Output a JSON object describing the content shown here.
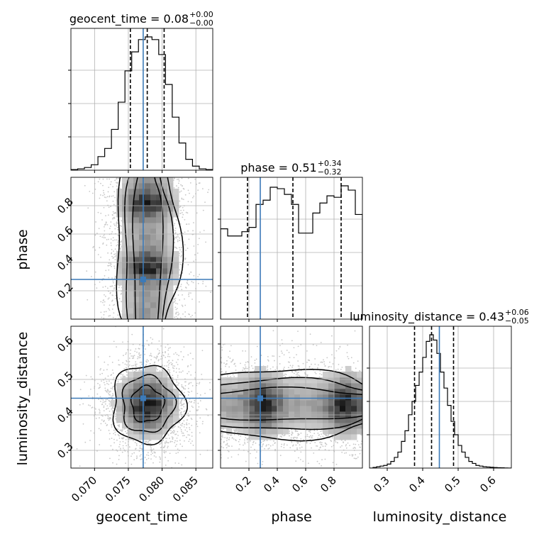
{
  "chart_data": {
    "type": "corner",
    "parameters": [
      "geocent_time",
      "phase",
      "luminosity_distance"
    ],
    "axis_labels": [
      "geocent_time",
      "phase",
      "luminosity_distance"
    ],
    "ranges": [
      [
        0.0665,
        0.0875
      ],
      [
        0.0,
        1.0
      ],
      [
        0.25,
        0.65
      ]
    ],
    "ticks": [
      {
        "values": [
          0.07,
          0.075,
          0.08,
          0.085
        ],
        "labels": [
          "0.070",
          "0.075",
          "0.080",
          "0.085"
        ]
      },
      {
        "values": [
          0.2,
          0.4,
          0.6,
          0.8
        ],
        "labels": [
          "0.2",
          "0.4",
          "0.6",
          "0.8"
        ]
      },
      {
        "values": [
          0.3,
          0.4,
          0.5,
          0.6
        ],
        "labels": [
          "0.3",
          "0.4",
          "0.5",
          "0.6"
        ]
      }
    ],
    "grid": true,
    "truths": [
      0.0772,
      0.28,
      0.447
    ],
    "truth_color": "#3c7ab8",
    "titles": [
      {
        "name": "geocent_time",
        "median": "0.08",
        "plus": "+0.00",
        "minus": "−0.00"
      },
      {
        "name": "phase",
        "median": "0.51",
        "plus": "+0.34",
        "minus": "−0.32"
      },
      {
        "name": "luminosity_distance",
        "median": "0.43",
        "plus": "+0.06",
        "minus": "−0.05"
      }
    ],
    "quantiles": [
      [
        0.0753,
        0.0778,
        0.0803
      ],
      [
        0.19,
        0.51,
        0.85
      ],
      [
        0.377,
        0.425,
        0.487
      ]
    ],
    "histograms": [
      {
        "bin_edges": [
          0.0665,
          0.0675,
          0.0685,
          0.0695,
          0.0705,
          0.0715,
          0.0725,
          0.0735,
          0.0745,
          0.0755,
          0.0765,
          0.0775,
          0.0785,
          0.0795,
          0.0805,
          0.0815,
          0.0825,
          0.0835,
          0.0845,
          0.0855,
          0.0865,
          0.0875
        ],
        "counts": [
          0.005,
          0.01,
          0.02,
          0.04,
          0.1,
          0.16,
          0.3,
          0.5,
          0.73,
          0.87,
          0.96,
          0.98,
          0.96,
          0.85,
          0.63,
          0.39,
          0.2,
          0.08,
          0.03,
          0.01,
          0.005
        ]
      },
      {
        "bin_edges": [
          0.0,
          0.05,
          0.1,
          0.15,
          0.2,
          0.25,
          0.3,
          0.35,
          0.4,
          0.45,
          0.5,
          0.55,
          0.6,
          0.65,
          0.7,
          0.75,
          0.8,
          0.85,
          0.9,
          0.95,
          1.0
        ],
        "counts": [
          0.63,
          0.58,
          0.58,
          0.61,
          0.64,
          0.8,
          0.83,
          0.92,
          0.91,
          0.87,
          0.8,
          0.6,
          0.6,
          0.74,
          0.81,
          0.86,
          0.85,
          0.93,
          0.9,
          0.73
        ]
      },
      {
        "bin_edges": [
          0.25,
          0.26,
          0.27,
          0.28,
          0.29,
          0.3,
          0.31,
          0.32,
          0.33,
          0.34,
          0.35,
          0.36,
          0.37,
          0.38,
          0.39,
          0.4,
          0.41,
          0.42,
          0.43,
          0.44,
          0.45,
          0.46,
          0.47,
          0.48,
          0.49,
          0.5,
          0.51,
          0.52,
          0.53,
          0.54,
          0.55,
          0.56,
          0.57,
          0.58,
          0.59,
          0.6,
          0.61,
          0.62,
          0.63,
          0.64,
          0.65
        ],
        "counts": [
          0,
          0.005,
          0.01,
          0.015,
          0.02,
          0.03,
          0.05,
          0.08,
          0.12,
          0.2,
          0.28,
          0.4,
          0.5,
          0.62,
          0.72,
          0.83,
          0.95,
          1.0,
          0.96,
          0.86,
          0.72,
          0.6,
          0.47,
          0.35,
          0.25,
          0.17,
          0.12,
          0.08,
          0.05,
          0.035,
          0.02,
          0.015,
          0.01,
          0.008,
          0.006,
          0.004,
          0.003,
          0.002,
          0.001,
          0
        ]
      }
    ],
    "density_pairs": [
      {
        "x_param": "geocent_time",
        "y_param": "phase",
        "center": [
          0.0778,
          0.5
        ],
        "sigma": [
          0.0024,
          0.3
        ],
        "y_peaks": [
          0.82,
          0.37
        ],
        "contours": "vertical band"
      },
      {
        "x_param": "geocent_time",
        "y_param": "luminosity_distance",
        "center": [
          0.0778,
          0.43
        ],
        "sigma": [
          0.0024,
          0.05
        ],
        "contours": "elliptical"
      },
      {
        "x_param": "phase",
        "y_param": "luminosity_distance",
        "center": [
          0.5,
          0.43
        ],
        "sigma": [
          0.3,
          0.05
        ],
        "x_peaks": [
          0.3,
          0.88
        ],
        "contours": "horizontal band"
      }
    ]
  }
}
